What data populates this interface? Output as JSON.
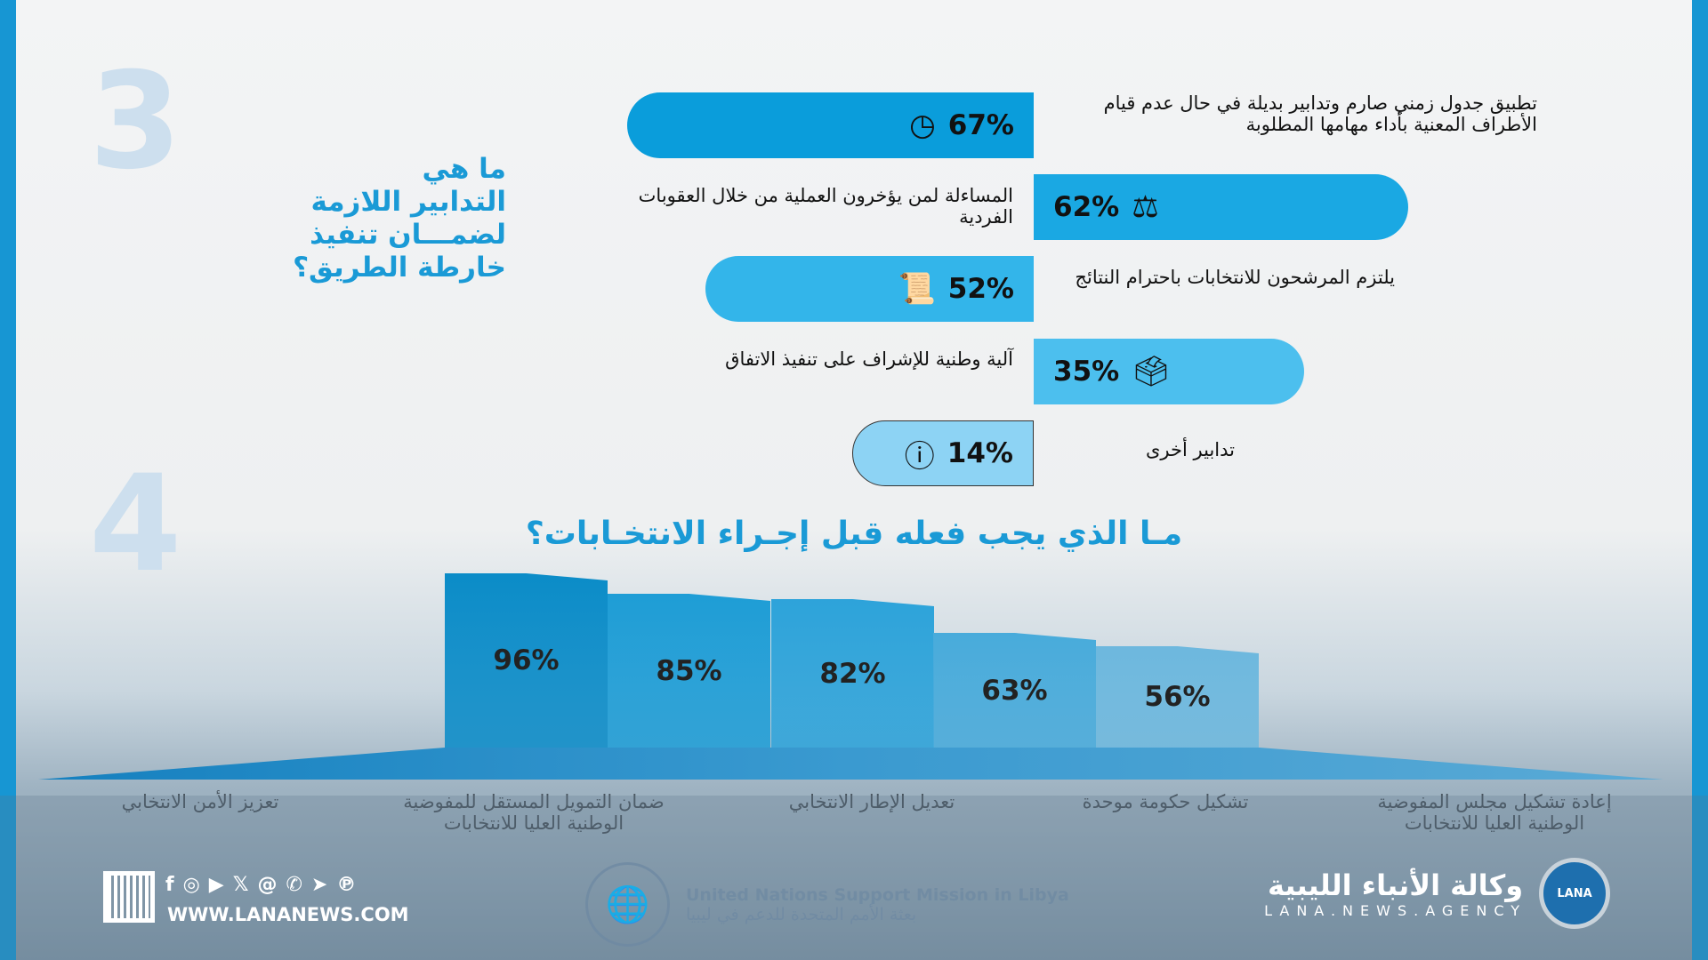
{
  "section3": {
    "number": "3",
    "title_lines": [
      "ما هي",
      "التدابير اللازمة",
      "لضمـــان تنفيذ",
      "خارطة الطريق؟"
    ],
    "items": [
      {
        "percent": "67%",
        "icon": "clock-icon",
        "text": "تطبيق جدول زمني صارم وتدابير بديلة في حال عدم قيام الأطراف المعنية بأداء مهامها المطلوبة",
        "color": "#0a9ddb"
      },
      {
        "percent": "62%",
        "icon": "scales-icon",
        "text": "المساءلة لمن يؤخرون العملية من خلال العقوبات الفردية",
        "color": "#1aa8e3"
      },
      {
        "percent": "52%",
        "icon": "certificate-icon",
        "text": "يلتزم المرشحون للانتخابات باحترام النتائج",
        "color": "#33b5ea"
      },
      {
        "percent": "35%",
        "icon": "ballot-box-icon",
        "text": "آلية وطنية للإشراف على تنفيذ الاتفاق",
        "color": "#4cbfee"
      },
      {
        "percent": "14%",
        "icon": "question-icon",
        "text": "تدابير أخرى",
        "color": "#8dd3f4"
      }
    ]
  },
  "section4": {
    "number": "4",
    "title": "مـا الذي يجب فعله قبل إجـراء الانتخـابات؟",
    "chart_data": {
      "type": "bar",
      "categories": [
        "إعادة تشكيل مجلس المفوضية الوطنية العليا للانتخابات",
        "تشكيل حكومة موحدة",
        "تعديل الإطار الانتخابي",
        "ضمان التمويل المستقل للمفوضية الوطنية العليا للانتخابات",
        "تعزيز الأمن الانتخابي"
      ],
      "values": [
        96,
        85,
        82,
        63,
        56
      ],
      "labels": [
        "96%",
        "85%",
        "82%",
        "63%",
        "56%"
      ],
      "ylim": [
        0,
        100
      ]
    },
    "axis_labels": [
      "تعزيز الأمن الانتخابي",
      "ضمان التمويل المستقل للمفوضية الوطنية العليا للانتخابات",
      "تعديل الإطار الانتخابي",
      "تشكيل حكومة موحدة",
      "إعادة تشكيل مجلس المفوضية الوطنية العليا للانتخابات"
    ]
  },
  "footer": {
    "website": "WWW.LANANEWS.COM",
    "social": [
      "f",
      "◎",
      "▶",
      "𝕏",
      "@",
      "✆",
      "➤",
      "℗"
    ],
    "un_en": "United Nations Support Mission in Libya",
    "un_ar": "بعثة الأمم المتحدة للدعم في ليبيا",
    "agency_ar": "وكالة الأنباء الليبية",
    "agency_en": "LANA.NEWS.AGENCY",
    "logo_text": "LANA"
  }
}
